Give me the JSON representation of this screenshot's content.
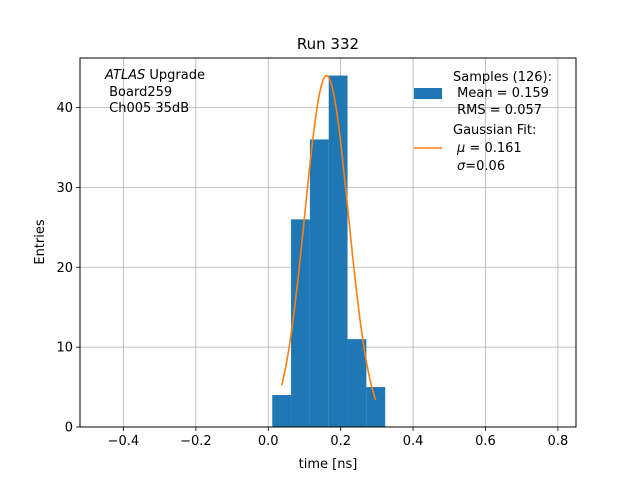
{
  "chart_data": {
    "type": "bar",
    "title": "Run 332",
    "xlabel": "time [ns]",
    "ylabel": "Entries",
    "xlim": [
      -0.52,
      0.85
    ],
    "ylim": [
      0,
      46.2
    ],
    "grid": true,
    "xticks": [
      -0.4,
      -0.2,
      0.0,
      0.2,
      0.4,
      0.6,
      0.8
    ],
    "xtick_labels": [
      "−0.4",
      "−0.2",
      "0.0",
      "0.2",
      "0.4",
      "0.6",
      "0.8"
    ],
    "yticks": [
      0,
      10,
      20,
      30,
      40
    ],
    "ytick_labels": [
      "0",
      "10",
      "20",
      "30",
      "40"
    ],
    "histogram": {
      "bin_edges": [
        0.011,
        0.063,
        0.115,
        0.167,
        0.219,
        0.271,
        0.323
      ],
      "counts": [
        4,
        26,
        36,
        44,
        11,
        5
      ],
      "color": "#1f77b4"
    },
    "gaussian_fit": {
      "amplitude": 44,
      "mu": 0.161,
      "sigma": 0.06,
      "x_range": [
        0.037,
        0.297
      ],
      "color": "#ff7f0e"
    },
    "annotation": {
      "line1_italic": "ATLAS",
      "line1_rest": " Upgrade",
      "line2": " Board259",
      "line3": " Ch005 35dB"
    },
    "legend": {
      "placement": "upper right",
      "samples": {
        "line1": "Samples (126):",
        "line2": " Mean = 0.159",
        "line3": " RMS = 0.057"
      },
      "fit": {
        "line1": "Gaussian Fit:",
        "line2_symbol": "μ",
        "line2_rest": " = 0.161",
        "line3_symbol": "σ",
        "line3_rest": "=0.06"
      }
    }
  }
}
